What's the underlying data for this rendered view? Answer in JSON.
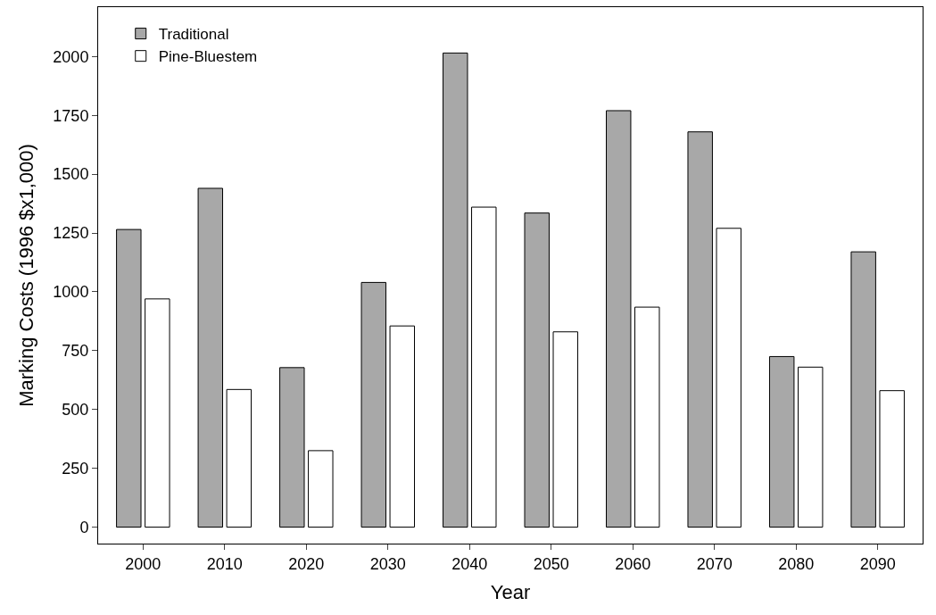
{
  "chart_data": {
    "type": "bar",
    "xlabel": "Year",
    "ylabel": "Marking Costs (1996 $x1,000)",
    "categories": [
      "2000",
      "2010",
      "2020",
      "2030",
      "2040",
      "2050",
      "2060",
      "2070",
      "2080",
      "2090"
    ],
    "series": [
      {
        "name": "Traditional",
        "color": "#a8a8a8",
        "values": [
          1265,
          1440,
          678,
          1040,
          2015,
          1335,
          1770,
          1680,
          725,
          1170
        ]
      },
      {
        "name": "Pine-Bluestem",
        "color": "#ffffff",
        "values": [
          970,
          585,
          325,
          855,
          1360,
          830,
          935,
          1270,
          680,
          580
        ]
      }
    ],
    "ylim": [
      -70,
      2210
    ],
    "yticks": [
      0,
      250,
      500,
      750,
      1000,
      1250,
      1500,
      1750,
      2000
    ],
    "legend": "top left"
  }
}
